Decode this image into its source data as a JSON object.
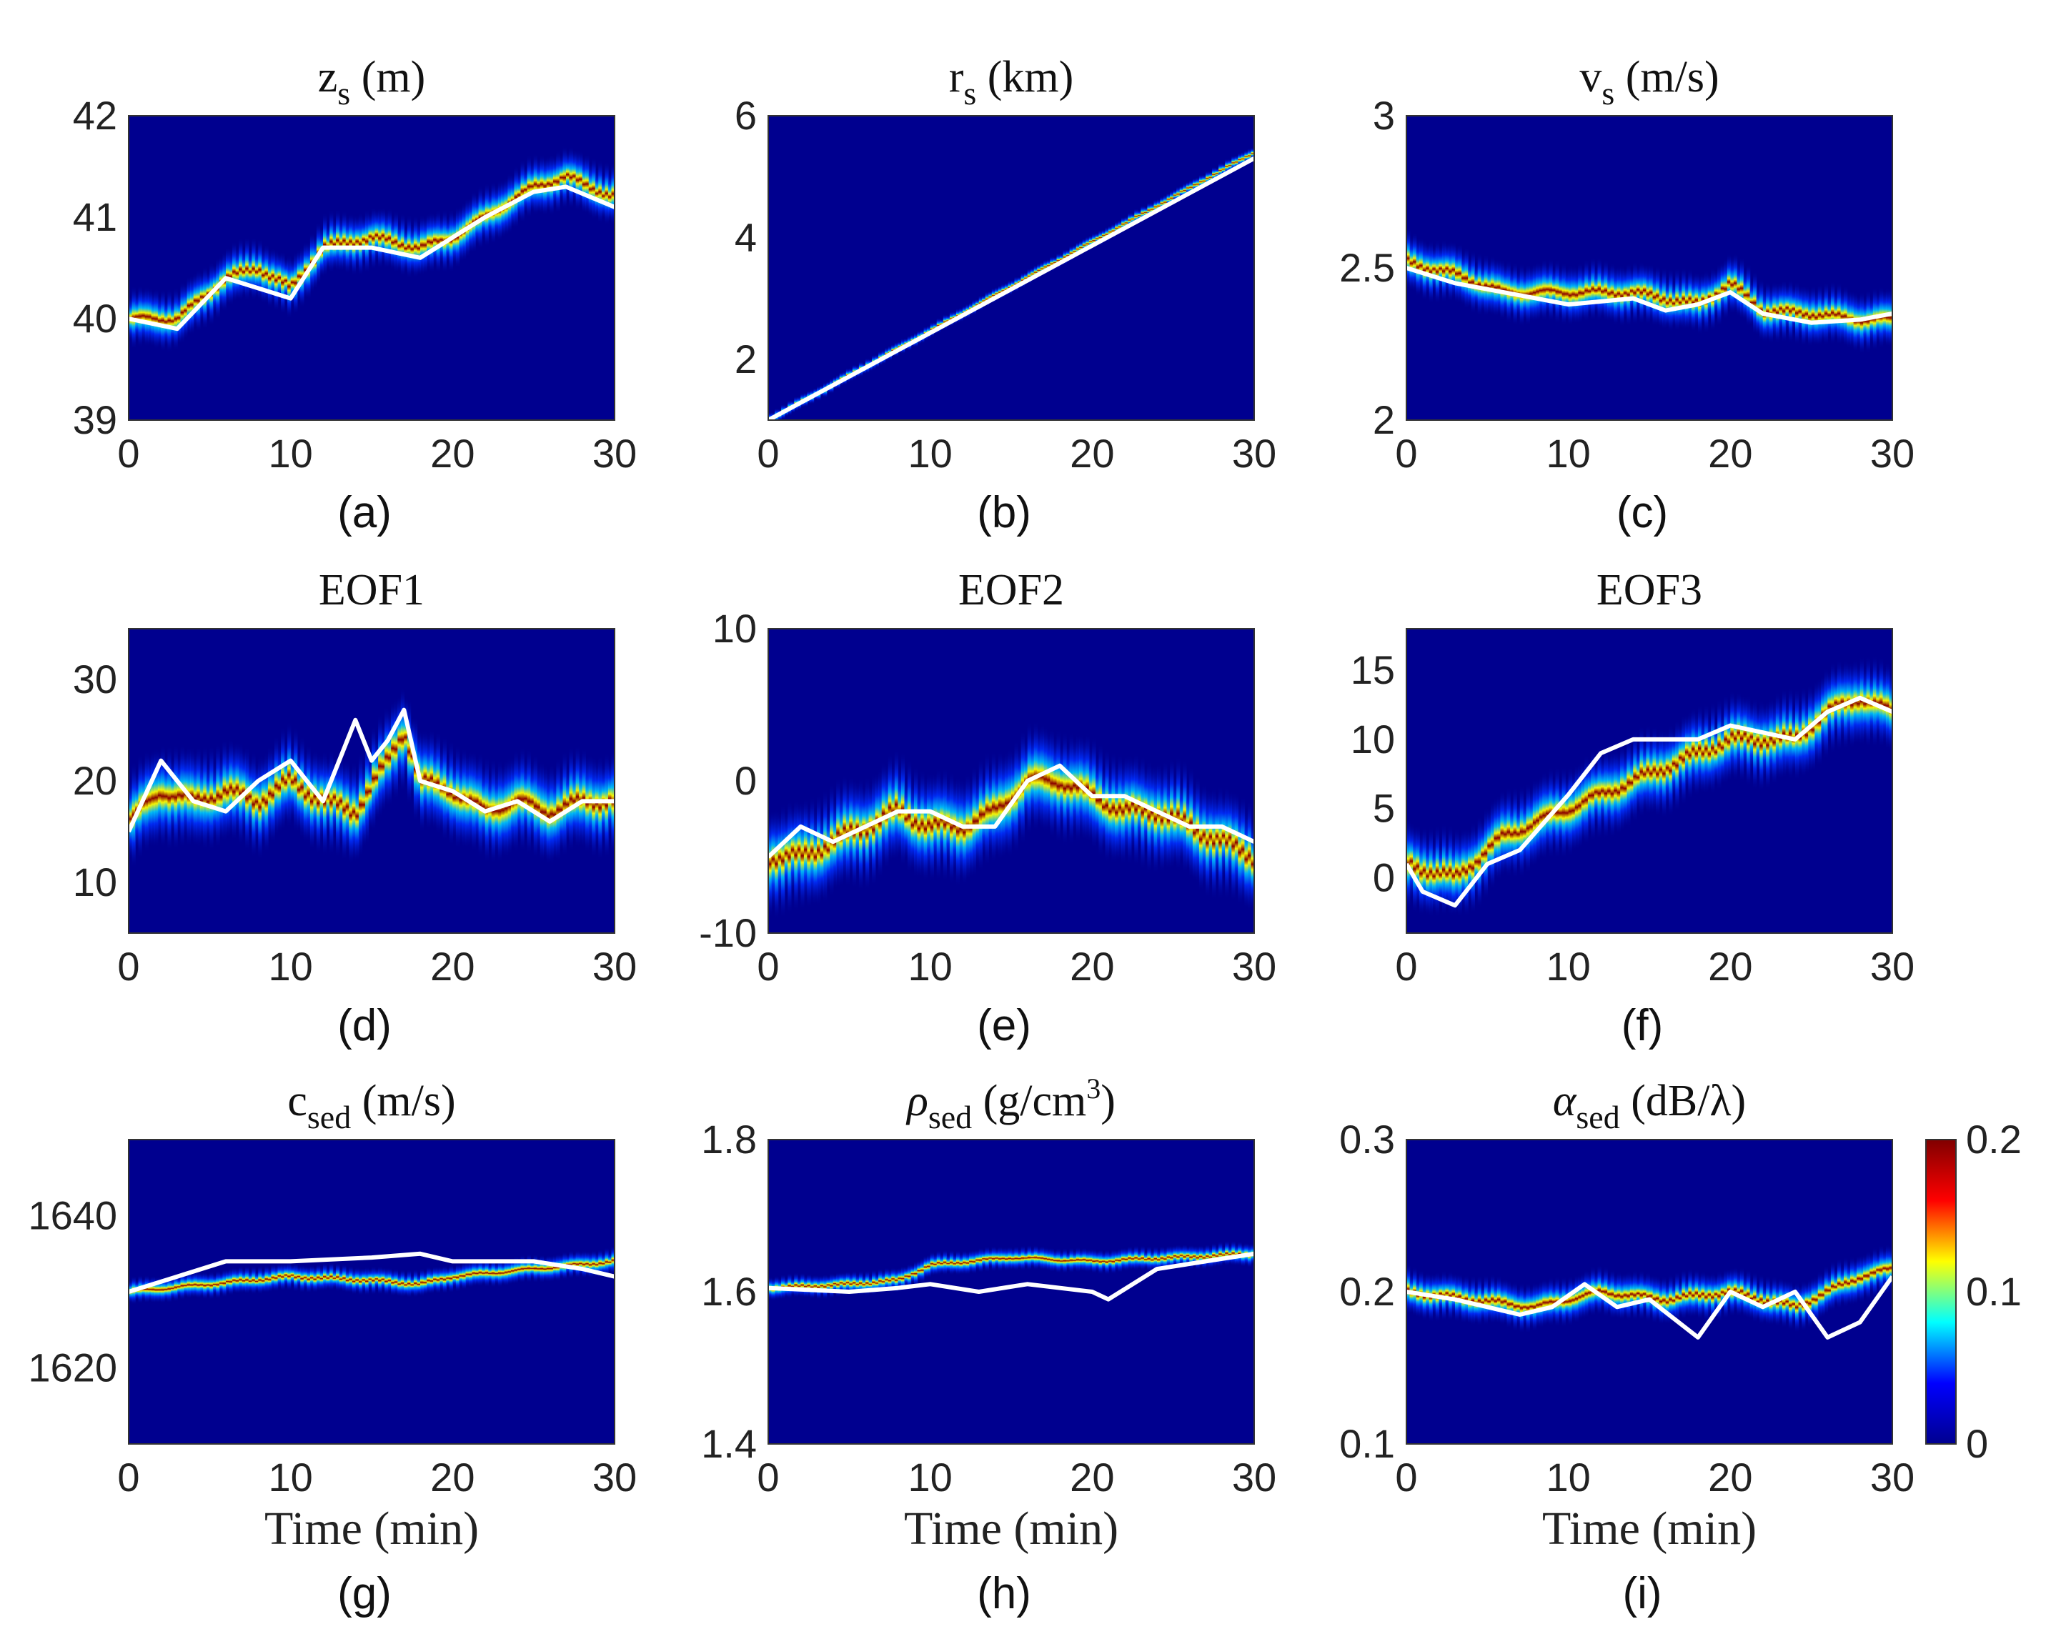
{
  "figure": {
    "xlabel": "Time (min)",
    "colormap": [
      "#00008f",
      "#0000ff",
      "#00ffff",
      "#ffff00",
      "#ff0000",
      "#800000"
    ]
  },
  "colorbar": {
    "min": 0,
    "max": 0.2,
    "ticks": [
      {
        "v": 0,
        "label": "0"
      },
      {
        "v": 0.1,
        "label": "0.1"
      },
      {
        "v": 0.2,
        "label": "0.2"
      }
    ]
  },
  "chart_data": [
    {
      "type": "heatmap",
      "title": {
        "main": "z",
        "sub": "s",
        "sup": "",
        "rest": "(m)"
      },
      "panel_label": "(a)",
      "xlim": [
        0,
        30
      ],
      "ylim": [
        39,
        42
      ],
      "xticks": [
        "0",
        "10",
        "20",
        "30"
      ],
      "yticks": [
        "39",
        "40",
        "41",
        "42"
      ],
      "ridge": {
        "x": [
          0,
          3,
          6,
          8,
          10,
          12,
          15,
          18,
          20,
          22,
          25,
          27,
          30
        ],
        "y": [
          40.0,
          40.0,
          40.4,
          40.5,
          40.3,
          40.7,
          40.8,
          40.7,
          40.8,
          41.0,
          41.3,
          41.4,
          41.2
        ],
        "width": 0.15
      },
      "truth": {
        "x": [
          0,
          3,
          6,
          8,
          10,
          12,
          15,
          18,
          20,
          22,
          25,
          27,
          30
        ],
        "y": [
          40.0,
          39.9,
          40.4,
          40.3,
          40.2,
          40.7,
          40.7,
          40.6,
          40.8,
          41.0,
          41.25,
          41.3,
          41.1
        ]
      }
    },
    {
      "type": "heatmap",
      "title": {
        "main": "r",
        "sub": "s",
        "sup": "",
        "rest": "(km)"
      },
      "panel_label": "(b)",
      "xlim": [
        0,
        30
      ],
      "ylim": [
        1,
        6
      ],
      "xticks": [
        "0",
        "10",
        "20",
        "30"
      ],
      "yticks": [
        "2",
        "4",
        "6"
      ],
      "ridge": {
        "x": [
          0,
          30
        ],
        "y": [
          1.0,
          5.4
        ],
        "width": 0.06
      },
      "truth": {
        "x": [
          0,
          30
        ],
        "y": [
          1.0,
          5.3
        ]
      }
    },
    {
      "type": "heatmap",
      "title": {
        "main": "v",
        "sub": "s",
        "sup": "",
        "rest": "(m/s)"
      },
      "panel_label": "(c)",
      "xlim": [
        0,
        30
      ],
      "ylim": [
        2,
        3
      ],
      "xticks": [
        "0",
        "10",
        "20",
        "30"
      ],
      "yticks": [
        "2",
        "2.5",
        "3"
      ],
      "ridge": {
        "x": [
          0,
          3,
          6,
          10,
          14,
          16,
          18,
          20,
          22,
          25,
          28,
          30
        ],
        "y": [
          2.52,
          2.48,
          2.42,
          2.42,
          2.42,
          2.4,
          2.38,
          2.45,
          2.36,
          2.35,
          2.33,
          2.33
        ],
        "width": 0.05
      },
      "truth": {
        "x": [
          0,
          3,
          6,
          10,
          14,
          16,
          18,
          20,
          22,
          25,
          28,
          30
        ],
        "y": [
          2.5,
          2.45,
          2.42,
          2.38,
          2.4,
          2.36,
          2.38,
          2.42,
          2.35,
          2.32,
          2.33,
          2.35
        ]
      }
    },
    {
      "type": "heatmap",
      "title": {
        "main": "EOF1",
        "sub": "",
        "sup": "",
        "rest": ""
      },
      "panel_label": "(d)",
      "xlim": [
        0,
        30
      ],
      "ylim": [
        5,
        35
      ],
      "xticks": [
        "0",
        "10",
        "20",
        "30"
      ],
      "yticks": [
        "10",
        "20",
        "30"
      ],
      "ridge": {
        "x": [
          0,
          2,
          4,
          6,
          8,
          10,
          12,
          14,
          16,
          17,
          18,
          20,
          22,
          24,
          26,
          28,
          30
        ],
        "y": [
          16,
          19,
          18,
          19,
          18,
          20,
          18,
          17,
          22,
          25,
          20,
          19,
          17,
          18,
          17,
          18,
          18
        ],
        "width": 2.5
      },
      "truth": {
        "x": [
          0,
          2,
          4,
          6,
          8,
          10,
          12,
          14,
          15,
          16,
          17,
          18,
          20,
          22,
          24,
          26,
          28,
          30
        ],
        "y": [
          15,
          22,
          18,
          17,
          20,
          22,
          18,
          26,
          22,
          24,
          27,
          20,
          19,
          17,
          18,
          16,
          18,
          18
        ]
      }
    },
    {
      "type": "heatmap",
      "title": {
        "main": "EOF2",
        "sub": "",
        "sup": "",
        "rest": ""
      },
      "panel_label": "(e)",
      "xlim": [
        0,
        30
      ],
      "ylim": [
        -10,
        10
      ],
      "xticks": [
        "0",
        "10",
        "20",
        "30"
      ],
      "yticks": [
        "-10",
        "0",
        "10"
      ],
      "ridge": {
        "x": [
          0,
          2,
          4,
          6,
          8,
          10,
          12,
          14,
          16,
          18,
          20,
          22,
          24,
          26,
          28,
          30
        ],
        "y": [
          -5,
          -5,
          -4,
          -3,
          -2,
          -3,
          -3,
          -2,
          0,
          0,
          -1,
          -2,
          -2,
          -3,
          -4,
          -5
        ],
        "width": 1.8
      },
      "truth": {
        "x": [
          0,
          2,
          4,
          6,
          8,
          10,
          12,
          14,
          16,
          18,
          20,
          22,
          24,
          26,
          28,
          30
        ],
        "y": [
          -5,
          -3,
          -4,
          -3,
          -2,
          -2,
          -3,
          -3,
          0,
          1,
          -1,
          -1,
          -2,
          -3,
          -3,
          -4
        ]
      }
    },
    {
      "type": "heatmap",
      "title": {
        "main": "EOF3",
        "sub": "",
        "sup": "",
        "rest": ""
      },
      "panel_label": "(f)",
      "xlim": [
        0,
        30
      ],
      "ylim": [
        -4,
        18
      ],
      "xticks": [
        "0",
        "10",
        "20",
        "30"
      ],
      "yticks": [
        "0",
        "5",
        "10",
        "15"
      ],
      "ridge": {
        "x": [
          0,
          3,
          6,
          10,
          14,
          18,
          20,
          24,
          26,
          28,
          30
        ],
        "y": [
          1,
          0,
          3,
          5,
          7,
          9,
          10,
          10,
          12,
          13,
          12
        ],
        "width": 1.6
      },
      "truth": {
        "x": [
          0,
          1,
          3,
          5,
          7,
          10,
          12,
          14,
          16,
          18,
          20,
          24,
          26,
          28,
          30
        ],
        "y": [
          1,
          -1,
          -2,
          1,
          2,
          6,
          9,
          10,
          10,
          10,
          11,
          10,
          12,
          13,
          12
        ]
      }
    },
    {
      "type": "heatmap",
      "title": {
        "main": "c",
        "sub": "sed",
        "sup": "",
        "rest": "(m/s)"
      },
      "panel_label": "(g)",
      "xlim": [
        0,
        30
      ],
      "ylim": [
        1610,
        1650
      ],
      "xticks": [
        "0",
        "10",
        "20",
        "30"
      ],
      "yticks": [
        "1620",
        "1640"
      ],
      "ridge": {
        "x": [
          0,
          5,
          10,
          15,
          18,
          20,
          25,
          30
        ],
        "y": [
          1630,
          1631,
          1632,
          1631.5,
          1631,
          1632,
          1633,
          1634
        ],
        "width": 0.9
      },
      "truth": {
        "x": [
          0,
          3,
          6,
          10,
          15,
          18,
          20,
          25,
          28,
          30
        ],
        "y": [
          1630,
          1632,
          1634,
          1634,
          1634.5,
          1635,
          1634,
          1634,
          1633,
          1632
        ]
      }
    },
    {
      "type": "heatmap",
      "title": {
        "main": "ρ",
        "sub": "sed",
        "sup": "3",
        "rest": "(g/cm"
      },
      "panel_label": "(h)",
      "xlim": [
        0,
        30
      ],
      "ylim": [
        1.4,
        1.8
      ],
      "xticks": [
        "0",
        "10",
        "20",
        "30"
      ],
      "yticks": [
        "1.4",
        "1.6",
        "1.8"
      ],
      "ridge": {
        "x": [
          0,
          5,
          8,
          10,
          15,
          20,
          25,
          30
        ],
        "y": [
          1.605,
          1.61,
          1.615,
          1.635,
          1.645,
          1.64,
          1.645,
          1.65
        ],
        "width": 0.008
      },
      "truth": {
        "x": [
          0,
          5,
          8,
          10,
          13,
          16,
          20,
          21,
          24,
          27,
          30
        ],
        "y": [
          1.605,
          1.6,
          1.605,
          1.61,
          1.6,
          1.61,
          1.6,
          1.59,
          1.63,
          1.64,
          1.65
        ]
      }
    },
    {
      "type": "heatmap",
      "title": {
        "main": "α",
        "sub": "sed",
        "sup": "",
        "rest": "(dB/λ)"
      },
      "panel_label": "(i)",
      "xlim": [
        0,
        30
      ],
      "ylim": [
        0.1,
        0.3
      ],
      "xticks": [
        "0",
        "10",
        "20",
        "30"
      ],
      "yticks": [
        "0.1",
        "0.2",
        "0.3"
      ],
      "ridge": {
        "x": [
          0,
          4,
          8,
          12,
          16,
          20,
          24,
          28,
          30
        ],
        "y": [
          0.2,
          0.195,
          0.19,
          0.2,
          0.195,
          0.2,
          0.19,
          0.21,
          0.215
        ],
        "width": 0.008
      },
      "truth": {
        "x": [
          0,
          3,
          5,
          7,
          9,
          11,
          13,
          15,
          18,
          20,
          22,
          24,
          26,
          28,
          30
        ],
        "y": [
          0.2,
          0.195,
          0.19,
          0.185,
          0.19,
          0.205,
          0.19,
          0.195,
          0.17,
          0.2,
          0.19,
          0.2,
          0.17,
          0.18,
          0.21
        ]
      }
    }
  ]
}
